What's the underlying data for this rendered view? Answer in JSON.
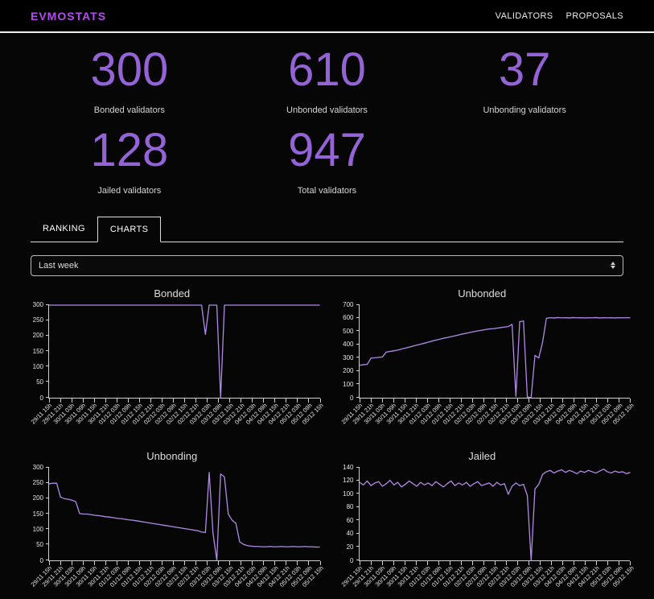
{
  "header": {
    "brand": "EVMOSTATS",
    "nav": [
      {
        "label": "VALIDATORS"
      },
      {
        "label": "PROPOSALS"
      }
    ]
  },
  "stats": {
    "items": [
      {
        "value": "300",
        "label": "Bonded validators"
      },
      {
        "value": "610",
        "label": "Unbonded validators"
      },
      {
        "value": "37",
        "label": "Unbonding validators"
      },
      {
        "value": "128",
        "label": "Jailed validators"
      },
      {
        "value": "947",
        "label": "Total validators"
      }
    ]
  },
  "tabs": {
    "items": [
      {
        "label": "RANKING",
        "active": false
      },
      {
        "label": "CHARTS",
        "active": true
      }
    ]
  },
  "filter": {
    "selected": "Last week"
  },
  "colors": {
    "brand": "#b44cf0",
    "accent": "#9463d6",
    "line": "#b28ae6",
    "background": "#060606"
  },
  "chart_data": [
    {
      "type": "line",
      "title": "Bonded",
      "ylim": [
        0,
        300
      ],
      "ytick_step": 50,
      "color": "#b28ae6",
      "legend": "none",
      "grid": false,
      "x_labels": [
        "29/11 15h",
        "29/11 21h",
        "30/11 03h",
        "30/11 09h",
        "30/11 15h",
        "30/11 21h",
        "01/12 03h",
        "01/12 09h",
        "01/12 15h",
        "01/12 21h",
        "02/12 03h",
        "02/12 09h",
        "02/12 15h",
        "02/12 21h",
        "03/12 03h",
        "03/12 09h",
        "03/12 15h",
        "03/12 21h",
        "04/12 03h",
        "04/12 09h",
        "04/12 15h",
        "04/12 21h",
        "05/12 03h",
        "05/12 09h",
        "05/12 15h"
      ],
      "values": [
        300,
        300,
        300,
        300,
        300,
        300,
        300,
        300,
        300,
        300,
        300,
        300,
        300,
        300,
        300,
        300,
        300,
        300,
        300,
        300,
        300,
        300,
        300,
        300,
        300,
        300,
        300,
        300,
        300,
        300,
        300,
        300,
        300,
        300,
        300,
        300,
        300,
        300,
        300,
        300,
        300,
        205,
        300,
        300,
        300,
        0,
        300,
        300,
        300,
        300,
        300,
        300,
        300,
        300,
        300,
        300,
        300,
        300,
        300,
        300,
        300,
        300,
        300,
        300,
        300,
        300,
        300,
        300,
        300,
        300,
        300,
        300
      ]
    },
    {
      "type": "line",
      "title": "Unbonded",
      "ylim": [
        0,
        700
      ],
      "ytick_step": 100,
      "color": "#b28ae6",
      "legend": "none",
      "grid": false,
      "x_labels": [
        "29/11 15h",
        "29/11 21h",
        "30/11 03h",
        "30/11 09h",
        "30/11 15h",
        "30/11 21h",
        "01/12 03h",
        "01/12 09h",
        "01/12 15h",
        "01/12 21h",
        "02/12 03h",
        "02/12 09h",
        "02/12 15h",
        "02/12 21h",
        "03/12 03h",
        "03/12 09h",
        "03/12 15h",
        "03/12 21h",
        "04/12 03h",
        "04/12 09h",
        "04/12 15h",
        "04/12 21h",
        "05/12 03h",
        "05/12 09h",
        "05/12 15h"
      ],
      "values": [
        245,
        250,
        252,
        300,
        302,
        305,
        308,
        345,
        350,
        355,
        360,
        368,
        375,
        382,
        390,
        398,
        405,
        412,
        420,
        428,
        435,
        442,
        450,
        455,
        462,
        468,
        475,
        482,
        488,
        494,
        500,
        505,
        510,
        515,
        520,
        522,
        526,
        530,
        534,
        538,
        555,
        10,
        575,
        580,
        5,
        0,
        320,
        300,
        420,
        600,
        605,
        603,
        606,
        604,
        605,
        603,
        606,
        604,
        605,
        603,
        605,
        604,
        606,
        603,
        605,
        604,
        605,
        603,
        605,
        604,
        605,
        605
      ]
    },
    {
      "type": "line",
      "title": "Unbonding",
      "ylim": [
        0,
        300
      ],
      "ytick_step": 50,
      "color": "#b28ae6",
      "legend": "none",
      "grid": false,
      "x_labels": [
        "29/11 15h",
        "29/11 21h",
        "30/11 03h",
        "30/11 09h",
        "30/11 15h",
        "30/11 21h",
        "01/12 03h",
        "01/12 09h",
        "01/12 15h",
        "01/12 21h",
        "02/12 03h",
        "02/12 09h",
        "02/12 15h",
        "02/12 21h",
        "03/12 03h",
        "03/12 09h",
        "03/12 15h",
        "03/12 21h",
        "04/12 03h",
        "04/12 09h",
        "04/12 15h",
        "04/12 21h",
        "05/12 03h",
        "05/12 09h",
        "05/12 15h"
      ],
      "values": [
        248,
        250,
        250,
        205,
        200,
        198,
        195,
        190,
        152,
        150,
        150,
        148,
        146,
        145,
        143,
        141,
        140,
        138,
        136,
        135,
        133,
        131,
        130,
        128,
        126,
        124,
        122,
        120,
        118,
        116,
        114,
        112,
        110,
        108,
        106,
        104,
        102,
        100,
        98,
        96,
        92,
        90,
        285,
        88,
        0,
        280,
        270,
        150,
        130,
        120,
        60,
        52,
        48,
        46,
        45,
        45,
        44,
        44,
        45,
        44,
        44,
        45,
        44,
        44,
        45,
        44,
        44,
        45,
        44,
        44,
        43,
        43
      ]
    },
    {
      "type": "line",
      "title": "Jailed",
      "ylim": [
        0,
        140
      ],
      "ytick_step": 20,
      "color": "#b28ae6",
      "legend": "none",
      "grid": false,
      "x_labels": [
        "29/11 15h",
        "29/11 21h",
        "30/11 03h",
        "30/11 09h",
        "30/11 15h",
        "30/11 21h",
        "01/12 03h",
        "01/12 09h",
        "01/12 15h",
        "01/12 21h",
        "02/12 03h",
        "02/12 09h",
        "02/12 15h",
        "02/12 21h",
        "03/12 03h",
        "03/12 09h",
        "03/12 15h",
        "03/12 21h",
        "04/12 03h",
        "04/12 09h",
        "04/12 15h",
        "04/12 21h",
        "05/12 03h",
        "05/12 09h",
        "05/12 15h"
      ],
      "values": [
        118,
        114,
        120,
        113,
        117,
        119,
        112,
        116,
        121,
        114,
        118,
        111,
        115,
        120,
        116,
        112,
        118,
        114,
        117,
        113,
        119,
        115,
        111,
        116,
        120,
        113,
        117,
        114,
        118,
        112,
        116,
        119,
        113,
        115,
        117,
        112,
        118,
        114,
        116,
        100,
        112,
        117,
        113,
        115,
        98,
        0,
        108,
        115,
        130,
        134,
        136,
        132,
        135,
        137,
        133,
        136,
        134,
        131,
        135,
        133,
        136,
        134,
        132,
        135,
        138,
        134,
        132,
        135,
        133,
        134,
        131,
        133
      ]
    }
  ]
}
